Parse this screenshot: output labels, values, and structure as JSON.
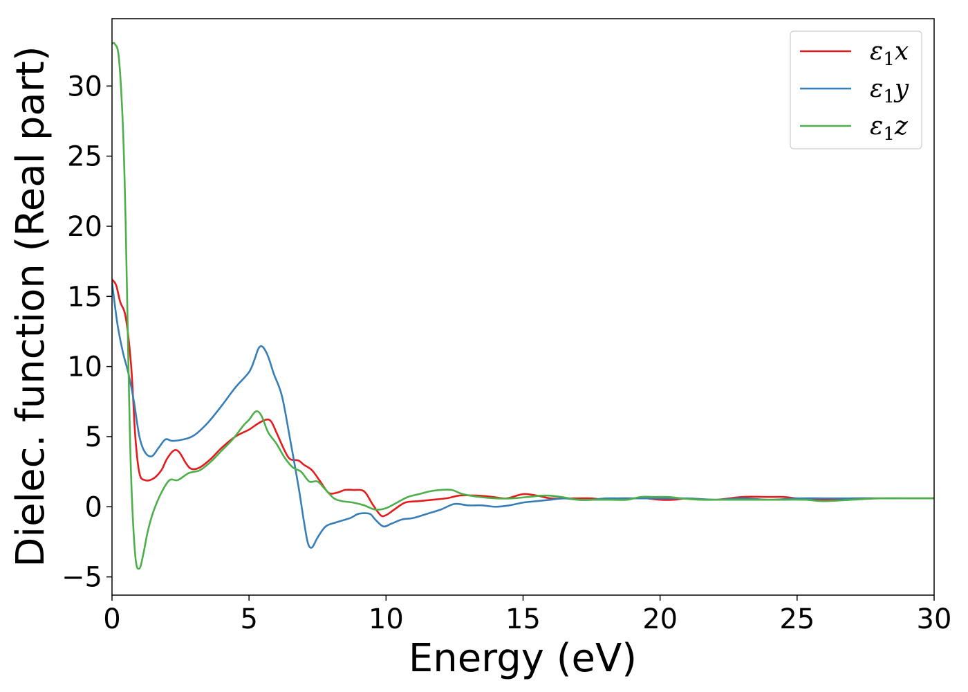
{
  "chart_data": {
    "type": "line",
    "title": "",
    "xlabel": "Energy (eV)",
    "ylabel": "Dielec. function (Real part)",
    "xlim": [
      0,
      30
    ],
    "ylim": [
      -6.3,
      34.8
    ],
    "xticks": [
      0,
      5,
      10,
      15,
      20,
      25,
      30
    ],
    "xtick_labels": [
      "0",
      "5",
      "10",
      "15",
      "20",
      "25",
      "30"
    ],
    "yticks": [
      -5,
      0,
      5,
      10,
      15,
      20,
      25,
      30
    ],
    "ytick_labels": [
      "−5",
      "0",
      "5",
      "10",
      "15",
      "20",
      "25",
      "30"
    ],
    "legend_position": "top-right",
    "series": [
      {
        "name": "ε₁x",
        "legend_symbol": "ε",
        "legend_sub": "1",
        "legend_suffix": "x",
        "color": "#e41a1c",
        "points": [
          [
            0,
            16.2
          ],
          [
            0.15,
            15.8
          ],
          [
            0.3,
            14.6
          ],
          [
            0.5,
            13.5
          ],
          [
            0.7,
            10
          ],
          [
            0.85,
            5
          ],
          [
            1.0,
            2.4
          ],
          [
            1.2,
            1.9
          ],
          [
            1.5,
            2.0
          ],
          [
            1.8,
            2.6
          ],
          [
            2.0,
            3.4
          ],
          [
            2.25,
            4.0
          ],
          [
            2.45,
            3.9
          ],
          [
            2.7,
            3.1
          ],
          [
            2.9,
            2.7
          ],
          [
            3.2,
            2.8
          ],
          [
            3.6,
            3.4
          ],
          [
            4.0,
            4.2
          ],
          [
            4.5,
            5.0
          ],
          [
            5.0,
            5.5
          ],
          [
            5.3,
            5.9
          ],
          [
            5.6,
            6.2
          ],
          [
            5.8,
            6.1
          ],
          [
            6.0,
            5.3
          ],
          [
            6.3,
            4.0
          ],
          [
            6.5,
            3.4
          ],
          [
            6.8,
            3.3
          ],
          [
            7.0,
            3.0
          ],
          [
            7.3,
            2.6
          ],
          [
            7.6,
            1.8
          ],
          [
            7.9,
            1.0
          ],
          [
            8.2,
            1.0
          ],
          [
            8.5,
            1.2
          ],
          [
            8.8,
            1.2
          ],
          [
            9.2,
            1.1
          ],
          [
            9.5,
            0.2
          ],
          [
            9.8,
            -0.6
          ],
          [
            10.0,
            -0.6
          ],
          [
            10.3,
            -0.2
          ],
          [
            10.7,
            0.3
          ],
          [
            11.2,
            0.4
          ],
          [
            11.7,
            0.5
          ],
          [
            12.2,
            0.6
          ],
          [
            12.7,
            0.8
          ],
          [
            13.3,
            0.8
          ],
          [
            13.9,
            0.7
          ],
          [
            14.4,
            0.6
          ],
          [
            15.0,
            0.9
          ],
          [
            15.5,
            0.8
          ],
          [
            16.0,
            0.6
          ],
          [
            16.5,
            0.6
          ],
          [
            17.0,
            0.6
          ],
          [
            17.5,
            0.6
          ],
          [
            18.0,
            0.5
          ],
          [
            18.5,
            0.6
          ],
          [
            19.0,
            0.6
          ],
          [
            19.5,
            0.6
          ],
          [
            20.0,
            0.5
          ],
          [
            20.5,
            0.5
          ],
          [
            21.0,
            0.6
          ],
          [
            22.0,
            0.5
          ],
          [
            23.0,
            0.7
          ],
          [
            24.0,
            0.7
          ],
          [
            24.5,
            0.7
          ],
          [
            25.0,
            0.6
          ],
          [
            26.0,
            0.5
          ],
          [
            27.0,
            0.6
          ],
          [
            28.0,
            0.6
          ],
          [
            29.0,
            0.6
          ],
          [
            30.0,
            0.6
          ]
        ]
      },
      {
        "name": "ε₁y",
        "legend_symbol": "ε",
        "legend_sub": "1",
        "legend_suffix": "y",
        "color": "#377eb8",
        "points": [
          [
            0,
            16.0
          ],
          [
            0.2,
            13.0
          ],
          [
            0.4,
            11.0
          ],
          [
            0.6,
            9.5
          ],
          [
            0.8,
            7.5
          ],
          [
            1.0,
            5.0
          ],
          [
            1.2,
            3.9
          ],
          [
            1.45,
            3.6
          ],
          [
            1.7,
            4.2
          ],
          [
            1.95,
            4.8
          ],
          [
            2.2,
            4.7
          ],
          [
            2.6,
            4.8
          ],
          [
            3.0,
            5.1
          ],
          [
            3.5,
            6.0
          ],
          [
            4.0,
            7.2
          ],
          [
            4.5,
            8.5
          ],
          [
            5.0,
            9.6
          ],
          [
            5.2,
            10.5
          ],
          [
            5.35,
            11.3
          ],
          [
            5.5,
            11.4
          ],
          [
            5.7,
            10.7
          ],
          [
            5.9,
            9.5
          ],
          [
            6.2,
            7.9
          ],
          [
            6.5,
            4.8
          ],
          [
            6.8,
            1.5
          ],
          [
            7.0,
            -1.0
          ],
          [
            7.15,
            -2.6
          ],
          [
            7.3,
            -2.9
          ],
          [
            7.5,
            -2.2
          ],
          [
            7.8,
            -1.4
          ],
          [
            8.2,
            -1.1
          ],
          [
            8.7,
            -0.8
          ],
          [
            9.0,
            -0.5
          ],
          [
            9.4,
            -0.5
          ],
          [
            9.6,
            -0.9
          ],
          [
            9.9,
            -1.4
          ],
          [
            10.2,
            -1.2
          ],
          [
            10.6,
            -0.9
          ],
          [
            11.0,
            -0.8
          ],
          [
            11.5,
            -0.5
          ],
          [
            12.0,
            -0.2
          ],
          [
            12.5,
            0.2
          ],
          [
            13.0,
            0.1
          ],
          [
            13.5,
            0.1
          ],
          [
            14.0,
            0.0
          ],
          [
            14.5,
            0.1
          ],
          [
            15.0,
            0.3
          ],
          [
            15.5,
            0.4
          ],
          [
            16.0,
            0.5
          ],
          [
            16.5,
            0.6
          ],
          [
            17.0,
            0.5
          ],
          [
            17.5,
            0.5
          ],
          [
            18.0,
            0.6
          ],
          [
            18.5,
            0.6
          ],
          [
            19.0,
            0.6
          ],
          [
            19.5,
            0.6
          ],
          [
            20.0,
            0.6
          ],
          [
            20.5,
            0.6
          ],
          [
            21.0,
            0.6
          ],
          [
            22.0,
            0.5
          ],
          [
            23.0,
            0.6
          ],
          [
            24.0,
            0.5
          ],
          [
            25.0,
            0.6
          ],
          [
            26.0,
            0.6
          ],
          [
            27.0,
            0.6
          ],
          [
            28.0,
            0.6
          ],
          [
            29.0,
            0.6
          ],
          [
            30.0,
            0.6
          ]
        ]
      },
      {
        "name": "ε₁z",
        "legend_symbol": "ε",
        "legend_sub": "1",
        "legend_suffix": "z",
        "color": "#4daf4a",
        "points": [
          [
            0,
            33.0
          ],
          [
            0.1,
            33.0
          ],
          [
            0.25,
            32.0
          ],
          [
            0.4,
            27.0
          ],
          [
            0.5,
            20.0
          ],
          [
            0.6,
            10.0
          ],
          [
            0.7,
            2.0
          ],
          [
            0.85,
            -3.5
          ],
          [
            1.0,
            -4.4
          ],
          [
            1.15,
            -3.3
          ],
          [
            1.3,
            -1.8
          ],
          [
            1.5,
            -0.4
          ],
          [
            1.8,
            1.0
          ],
          [
            2.1,
            1.9
          ],
          [
            2.4,
            1.9
          ],
          [
            2.8,
            2.4
          ],
          [
            3.2,
            2.6
          ],
          [
            3.6,
            3.2
          ],
          [
            4.0,
            4.0
          ],
          [
            4.4,
            4.8
          ],
          [
            4.8,
            5.8
          ],
          [
            5.0,
            6.2
          ],
          [
            5.25,
            6.8
          ],
          [
            5.45,
            6.5
          ],
          [
            5.7,
            5.3
          ],
          [
            6.0,
            4.5
          ],
          [
            6.3,
            3.5
          ],
          [
            6.6,
            2.8
          ],
          [
            6.9,
            2.5
          ],
          [
            7.2,
            1.8
          ],
          [
            7.5,
            1.8
          ],
          [
            7.8,
            1.2
          ],
          [
            8.1,
            0.6
          ],
          [
            8.4,
            0.4
          ],
          [
            8.8,
            0.3
          ],
          [
            9.2,
            0.1
          ],
          [
            9.6,
            -0.2
          ],
          [
            10.0,
            -0.1
          ],
          [
            10.4,
            0.3
          ],
          [
            10.8,
            0.7
          ],
          [
            11.2,
            0.9
          ],
          [
            11.6,
            1.1
          ],
          [
            12.0,
            1.2
          ],
          [
            12.4,
            1.2
          ],
          [
            12.8,
            0.9
          ],
          [
            13.4,
            0.7
          ],
          [
            14.0,
            0.6
          ],
          [
            14.6,
            0.6
          ],
          [
            15.2,
            0.7
          ],
          [
            15.8,
            0.8
          ],
          [
            16.4,
            0.7
          ],
          [
            17.0,
            0.5
          ],
          [
            17.6,
            0.5
          ],
          [
            18.2,
            0.5
          ],
          [
            18.8,
            0.5
          ],
          [
            19.3,
            0.7
          ],
          [
            19.8,
            0.7
          ],
          [
            20.3,
            0.7
          ],
          [
            20.8,
            0.6
          ],
          [
            21.5,
            0.5
          ],
          [
            22.5,
            0.5
          ],
          [
            23.5,
            0.5
          ],
          [
            24.5,
            0.5
          ],
          [
            25.3,
            0.5
          ],
          [
            26.0,
            0.4
          ],
          [
            27.0,
            0.5
          ],
          [
            28.0,
            0.6
          ],
          [
            29.0,
            0.6
          ],
          [
            30.0,
            0.6
          ]
        ]
      }
    ]
  }
}
